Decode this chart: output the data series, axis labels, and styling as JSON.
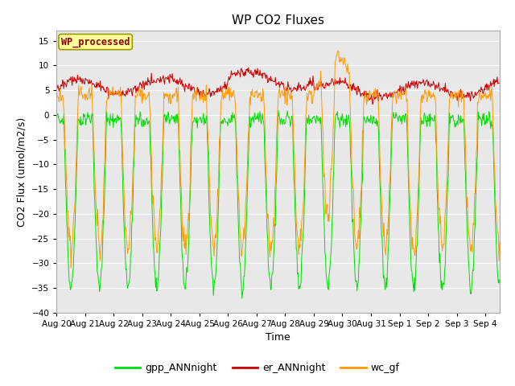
{
  "title": "WP CO2 Fluxes",
  "xlabel": "Time",
  "ylabel": "CO2 Flux (umol/m2/s)",
  "ylim": [
    -40,
    17
  ],
  "yticks": [
    -40,
    -35,
    -30,
    -25,
    -20,
    -15,
    -10,
    -5,
    0,
    5,
    10,
    15
  ],
  "date_labels": [
    "Aug 20",
    "Aug 21",
    "Aug 22",
    "Aug 23",
    "Aug 24",
    "Aug 25",
    "Aug 26",
    "Aug 27",
    "Aug 28",
    "Aug 29",
    "Aug 30",
    "Aug 31",
    "Sep 1",
    "Sep 2",
    "Sep 3",
    "Sep 4"
  ],
  "n_days": 15.5,
  "points_per_day": 48,
  "gpp_color": "#00dd00",
  "er_color": "#cc0000",
  "wc_color": "#ff9900",
  "bg_color": "#e8e8e8",
  "legend_label": "WP_processed",
  "legend_text_color": "#8b0000",
  "legend_bg": "#ffff99",
  "line_labels": [
    "gpp_ANNnight",
    "er_ANNnight",
    "wc_gf"
  ],
  "line_colors": [
    "#00dd00",
    "#cc0000",
    "#ff9900"
  ],
  "title_fontsize": 11,
  "axis_fontsize": 9,
  "tick_fontsize": 7.5
}
